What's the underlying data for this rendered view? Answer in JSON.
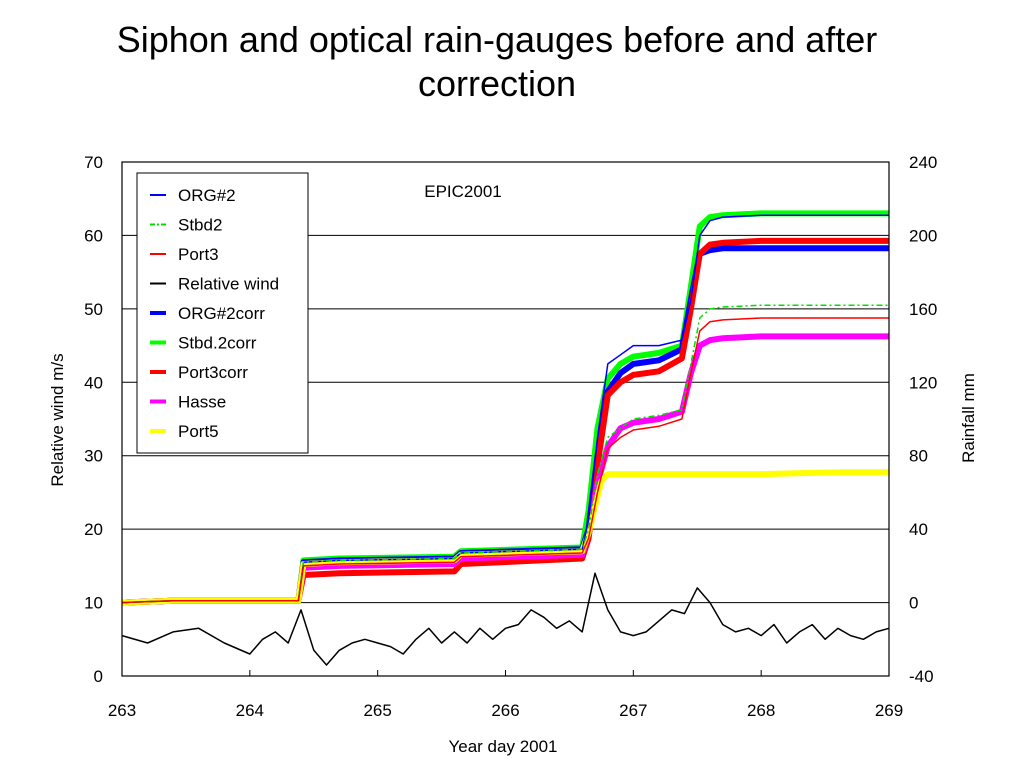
{
  "slide": {
    "title": "Siphon and optical rain-gauges before and after correction"
  },
  "chart_data": {
    "type": "line",
    "annotation": "EPIC2001",
    "xlabel": "Year day 2001",
    "ylabel_left": "Relative wind m/s",
    "ylabel_right": "Rainfall mm",
    "xlim": [
      263,
      269
    ],
    "ylim_left": [
      0,
      70
    ],
    "ylim_right": [
      -40,
      240
    ],
    "x_ticks": [
      263,
      264,
      265,
      266,
      267,
      268,
      269
    ],
    "x_tick_labels": [
      "263",
      "264",
      "265",
      "266",
      "267",
      "268",
      "269"
    ],
    "y_left_ticks": [
      0,
      10,
      20,
      30,
      40,
      50,
      60,
      70
    ],
    "y_left_tick_labels": [
      "0",
      "10",
      "20",
      "30",
      "40",
      "50",
      "60",
      "70"
    ],
    "y_right_ticks": [
      -40,
      0,
      40,
      80,
      120,
      160,
      200,
      240
    ],
    "y_right_tick_labels": [
      "-40",
      "0",
      "40",
      "80",
      "120",
      "160",
      "200",
      "240"
    ],
    "grid": "horizontal",
    "legend_position": "top-left",
    "series": [
      {
        "name": "ORG#2",
        "axis": "right",
        "color": "#0000ff",
        "style": "solid",
        "x": [
          263.0,
          263.4,
          264.38,
          264.42,
          264.7,
          265.6,
          265.65,
          266.6,
          266.65,
          266.72,
          266.8,
          266.9,
          267.0,
          267.2,
          267.38,
          267.45,
          267.52,
          267.6,
          267.7,
          268.0,
          269.0
        ],
        "y": [
          0,
          1,
          1,
          22,
          23,
          24,
          27,
          29,
          45,
          90,
          130,
          135,
          140,
          140,
          143,
          165,
          200,
          208,
          210,
          211,
          211
        ]
      },
      {
        "name": "Stbd2",
        "axis": "right",
        "color": "#00dd00",
        "style": "dashdot",
        "x": [
          263.0,
          263.4,
          264.38,
          264.42,
          264.7,
          265.6,
          265.65,
          266.6,
          266.65,
          266.72,
          266.8,
          266.9,
          267.0,
          267.2,
          267.38,
          267.45,
          267.52,
          267.6,
          267.7,
          268.0,
          269.0
        ],
        "y": [
          0,
          1,
          1,
          22,
          23,
          24,
          27,
          29,
          40,
          70,
          90,
          95,
          100,
          102,
          105,
          130,
          155,
          160,
          161,
          162,
          162
        ]
      },
      {
        "name": "Port3",
        "axis": "right",
        "color": "#ff0000",
        "style": "solid",
        "x": [
          263.0,
          263.4,
          264.38,
          264.42,
          264.7,
          265.6,
          265.65,
          266.6,
          266.65,
          266.72,
          266.8,
          266.9,
          267.0,
          267.2,
          267.38,
          267.45,
          267.52,
          267.6,
          267.7,
          268.0,
          269.0
        ],
        "y": [
          0,
          1,
          1,
          20,
          21,
          22,
          25,
          27,
          35,
          60,
          84,
          90,
          94,
          96,
          100,
          125,
          148,
          153,
          154,
          155,
          155
        ]
      },
      {
        "name": "Relative wind",
        "axis": "left",
        "color": "#000000",
        "style": "solid",
        "x": [
          263.0,
          263.2,
          263.4,
          263.6,
          263.8,
          264.0,
          264.1,
          264.2,
          264.3,
          264.4,
          264.5,
          264.6,
          264.7,
          264.8,
          264.9,
          265.0,
          265.1,
          265.2,
          265.3,
          265.4,
          265.5,
          265.6,
          265.7,
          265.8,
          265.9,
          266.0,
          266.1,
          266.2,
          266.3,
          266.4,
          266.5,
          266.6,
          266.7,
          266.8,
          266.9,
          267.0,
          267.1,
          267.2,
          267.3,
          267.4,
          267.5,
          267.6,
          267.7,
          267.8,
          267.9,
          268.0,
          268.1,
          268.2,
          268.3,
          268.4,
          268.5,
          268.6,
          268.7,
          268.8,
          268.9,
          269.0
        ],
        "y": [
          5.5,
          4.5,
          6,
          6.5,
          4.5,
          3,
          5,
          6,
          4.5,
          9,
          3.5,
          1.5,
          3.5,
          4.5,
          5,
          4.5,
          4,
          3,
          5,
          6.5,
          4.5,
          6,
          4.5,
          6.5,
          5,
          6.5,
          7,
          9,
          8,
          6.5,
          7.5,
          6,
          14,
          9,
          6,
          5.5,
          6,
          7.5,
          9,
          8.5,
          12,
          10,
          7,
          6,
          6.5,
          5.5,
          7,
          4.5,
          6,
          7,
          5,
          6.5,
          5.5,
          5,
          6,
          6.5
        ]
      },
      {
        "name": "ORG#2corr",
        "axis": "right",
        "color": "#0000ff",
        "style": "thick",
        "x": [
          263.0,
          263.4,
          264.38,
          264.42,
          264.7,
          265.6,
          265.65,
          266.6,
          266.65,
          266.72,
          266.8,
          266.9,
          267.0,
          267.2,
          267.38,
          267.45,
          267.52,
          267.6,
          267.7,
          268.0,
          269.0
        ],
        "y": [
          0,
          1,
          1,
          22,
          23,
          24,
          27,
          29,
          40,
          80,
          115,
          125,
          130,
          132,
          138,
          165,
          190,
          192,
          193,
          193,
          193
        ]
      },
      {
        "name": "Stbd.2corr",
        "axis": "right",
        "color": "#00ff00",
        "style": "thick",
        "x": [
          263.0,
          263.4,
          264.38,
          264.42,
          264.7,
          265.6,
          265.65,
          266.6,
          266.65,
          266.72,
          266.8,
          266.9,
          267.0,
          267.2,
          267.38,
          267.45,
          267.52,
          267.6,
          267.7,
          268.0,
          269.0
        ],
        "y": [
          0,
          1,
          1,
          23,
          24,
          25,
          28,
          30,
          50,
          95,
          122,
          130,
          134,
          136,
          140,
          172,
          205,
          210,
          211,
          212,
          212
        ]
      },
      {
        "name": "Port3corr",
        "axis": "right",
        "color": "#ff0000",
        "style": "thick",
        "x": [
          263.0,
          263.4,
          264.38,
          264.42,
          264.7,
          265.6,
          265.65,
          266.6,
          266.65,
          266.72,
          266.8,
          266.9,
          267.0,
          267.2,
          267.38,
          267.45,
          267.52,
          267.6,
          267.7,
          268.0,
          269.0
        ],
        "y": [
          0,
          1,
          1,
          15,
          16,
          17,
          21,
          24,
          35,
          75,
          113,
          120,
          124,
          126,
          133,
          160,
          190,
          195,
          196,
          197,
          197
        ]
      },
      {
        "name": "Hasse",
        "axis": "right",
        "color": "#ff00ff",
        "style": "thick",
        "x": [
          263.0,
          263.4,
          264.38,
          264.42,
          264.7,
          265.6,
          265.65,
          266.6,
          266.65,
          266.72,
          266.8,
          266.9,
          267.0,
          267.2,
          267.38,
          267.45,
          267.52,
          267.6,
          267.7,
          268.0,
          269.0
        ],
        "y": [
          0,
          1,
          1,
          19,
          20,
          21,
          24,
          26,
          38,
          65,
          85,
          95,
          98,
          100,
          104,
          125,
          140,
          143,
          144,
          145,
          145
        ]
      },
      {
        "name": "Port5",
        "axis": "right",
        "color": "#ffff00",
        "style": "thick",
        "x": [
          263.0,
          263.4,
          264.38,
          264.42,
          264.7,
          265.6,
          265.65,
          266.6,
          266.65,
          266.72,
          266.75,
          266.8,
          268.0,
          268.6,
          269.0
        ],
        "y": [
          0,
          1,
          1,
          21,
          22,
          23,
          26,
          28,
          38,
          58,
          66,
          70,
          70,
          71,
          71
        ]
      }
    ]
  }
}
